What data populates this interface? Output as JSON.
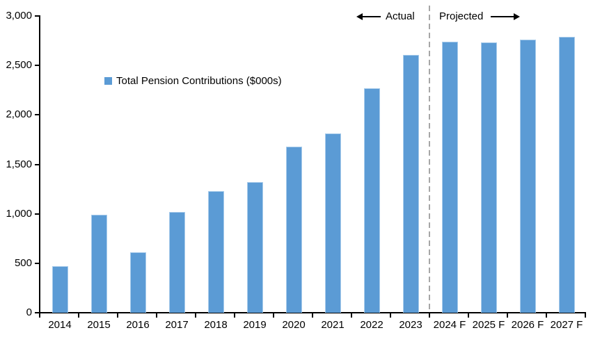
{
  "chart_data": {
    "type": "bar",
    "title": "",
    "categories": [
      "2014",
      "2015",
      "2016",
      "2017",
      "2018",
      "2019",
      "2020",
      "2021",
      "2022",
      "2023",
      "2024 F",
      "2025 F",
      "2026 F",
      "2027 F"
    ],
    "series": [
      {
        "name": "Total Pension Contributions ($000s)",
        "values": [
          470,
          990,
          610,
          1020,
          1230,
          1320,
          1680,
          1810,
          2270,
          2610,
          2740,
          2730,
          2760,
          2790
        ]
      }
    ],
    "ylim": [
      0,
      3000
    ],
    "ytick_step": 500,
    "yticks": [
      0,
      500,
      1000,
      1500,
      2000,
      2500,
      3000
    ],
    "ytick_labels": [
      "0",
      "500",
      "1,000",
      "1,500",
      "2,000",
      "2,500",
      "3,000"
    ],
    "grid": false,
    "legend_position": "inside-top-left",
    "bar_color": "#5B9BD5",
    "bar_border_color": "#A9CCEB",
    "axis_color": "#000000",
    "divider": {
      "between": [
        "2023",
        "2024 F"
      ],
      "style": "dashed",
      "color": "#A6A6A6"
    },
    "annotations": [
      {
        "text": "Actual",
        "arrow": "left",
        "region": "left-of-divider"
      },
      {
        "text": "Projected",
        "arrow": "right",
        "region": "right-of-divider"
      }
    ]
  },
  "legend": {
    "label": "Total Pension Contributions ($000s)",
    "marker_color": "#5B9BD5"
  },
  "annotations": {
    "actual": "Actual",
    "projected": "Projected"
  }
}
